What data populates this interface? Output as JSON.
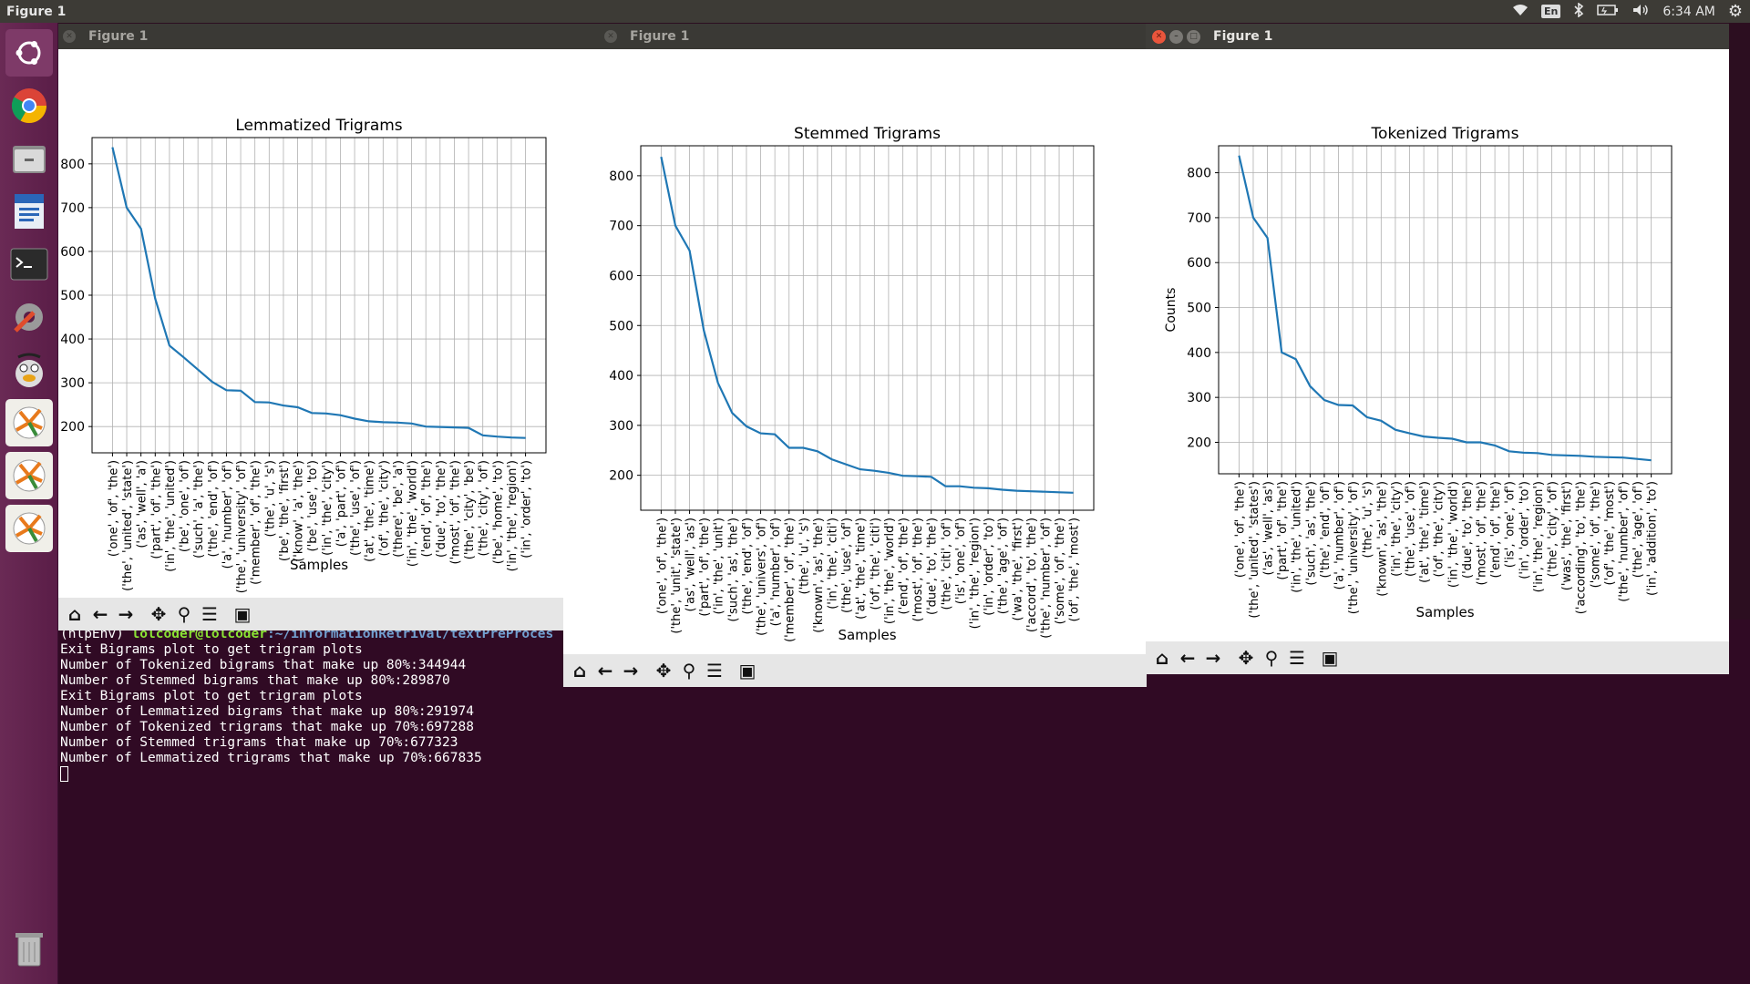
{
  "top_panel": {
    "app_title": "Figure 1",
    "keyboard_layout": "En",
    "clock": "6:34 AM"
  },
  "launcher": {
    "items": [
      "ubuntu-dash-icon",
      "chrome-icon",
      "files-icon",
      "writer-icon",
      "terminal-icon",
      "settings-icon",
      "gimp-icon",
      "matplotlib-figure-icon",
      "matplotlib-figure-icon",
      "matplotlib-figure-icon",
      "trash-icon"
    ]
  },
  "terminal": {
    "prompt_env": "(nlpEnv) ",
    "prompt_user": "lolcoder@lolcoder",
    "prompt_path": ":~/informationRetrival/textPreProces",
    "lines": [
      "Exit Bigrams plot to get trigram plots",
      "Number of Tokenized bigrams that make up 80%:344944",
      "Number of Stemmed bigrams that make up 80%:289870",
      "Exit Bigrams plot to get trigram plots",
      "Number of Lemmatized bigrams that make up 80%:291974",
      "Number of Tokenized trigrams that make up 70%:697288",
      "Number of Stemmed trigrams that make up 70%:677323",
      "Number of Lemmatized trigrams that make up 70%:667835"
    ]
  },
  "windows": [
    {
      "title": "Figure 1",
      "active": false
    },
    {
      "title": "Figure 1",
      "active": false
    },
    {
      "title": "Figure 1",
      "active": true
    }
  ],
  "toolbar_icons": [
    "home-icon",
    "back-icon",
    "forward-icon",
    "pan-icon",
    "zoom-icon",
    "configure-icon",
    "save-icon"
  ],
  "chart_data": [
    {
      "type": "line",
      "title": "Lemmatized Trigrams",
      "xlabel": "Samples",
      "ylabel": "",
      "ylim": [
        140,
        860
      ],
      "yticks": [
        200,
        300,
        400,
        500,
        600,
        700,
        800
      ],
      "grid": true,
      "line_color": "#1f77b4",
      "categories": [
        "('one', 'of', 'the')",
        "('the', 'united', 'state')",
        "('as', 'well', 'a')",
        "('part', 'of', 'the')",
        "('in', 'the', 'united')",
        "('be', 'one', 'of')",
        "('such', 'a', 'the')",
        "('the', 'end', 'of')",
        "('a', 'number', 'of')",
        "('the', 'university', 'of')",
        "('member', 'of', 'the')",
        "('the', 'u', 's')",
        "('be', 'the', 'first')",
        "('know', 'a', 'the')",
        "('be', 'use', 'to')",
        "('in', 'the', 'city')",
        "('a', 'part', 'of')",
        "('the', 'use', 'of')",
        "('at', 'the', 'time')",
        "('of', 'the', 'city')",
        "('there', 'be', 'a')",
        "('in', 'the', 'world')",
        "('end', 'of', 'the')",
        "('due', 'to', 'the')",
        "('most', 'of', 'the')",
        "('the', 'city', 'be')",
        "('the', 'city', 'of')",
        "('be', 'home', 'to')",
        "('in', 'the', 'region')",
        "('in', 'order', 'to')"
      ],
      "values": [
        838,
        700,
        652,
        492,
        385,
        358,
        330,
        302,
        283,
        282,
        256,
        255,
        248,
        244,
        231,
        230,
        226,
        218,
        212,
        210,
        209,
        207,
        200,
        199,
        198,
        197,
        180,
        177,
        175,
        174
      ]
    },
    {
      "type": "line",
      "title": "Stemmed Trigrams",
      "xlabel": "Samples",
      "ylabel": "",
      "ylim": [
        130,
        860
      ],
      "yticks": [
        200,
        300,
        400,
        500,
        600,
        700,
        800
      ],
      "grid": true,
      "line_color": "#1f77b4",
      "categories": [
        "('one', 'of', 'the')",
        "('the', 'unit', 'state')",
        "('as', 'well', 'as')",
        "('part', 'of', 'the')",
        "('in', 'the', 'unit')",
        "('such', 'as', 'the')",
        "('the', 'end', 'of')",
        "('the', 'univers', 'of')",
        "('a', 'number', 'of')",
        "('member', 'of', 'the')",
        "('the', 'u', 's')",
        "('known', 'as', 'the')",
        "('in', 'the', 'citi')",
        "('the', 'use', 'of')",
        "('at', 'the', 'time')",
        "('of', 'the', 'citi')",
        "('in', 'the', 'world')",
        "('end', 'of', 'the')",
        "('most', 'of', 'the')",
        "('due', 'to', 'the')",
        "('the', 'citi', 'of')",
        "('is', 'one', 'of')",
        "('in', 'the', 'region')",
        "('in', 'order', 'to')",
        "('the', 'age', 'of')",
        "('wa', 'the', 'first')",
        "('accord', 'to', 'the')",
        "('the', 'number', 'of')",
        "('some', 'of', 'the')",
        "('of', 'the', 'most')"
      ],
      "values": [
        838,
        700,
        650,
        490,
        385,
        325,
        298,
        284,
        282,
        255,
        255,
        248,
        232,
        222,
        212,
        209,
        205,
        199,
        198,
        197,
        178,
        178,
        175,
        174,
        171,
        169,
        168,
        167,
        166,
        165
      ]
    },
    {
      "type": "line",
      "title": "Tokenized Trigrams",
      "xlabel": "Samples",
      "ylabel": "Counts",
      "ylim": [
        130,
        860
      ],
      "yticks": [
        200,
        300,
        400,
        500,
        600,
        700,
        800
      ],
      "grid": true,
      "line_color": "#1f77b4",
      "categories": [
        "('one', 'of', 'the')",
        "('the', 'united', 'states')",
        "('as', 'well', 'as')",
        "('part', 'of', 'the')",
        "('in', 'the', 'united')",
        "('such', 'as', 'the')",
        "('the', 'end', 'of')",
        "('a', 'number', 'of')",
        "('the', 'university', 'of')",
        "('the', 'u', 's')",
        "('known', 'as', 'the')",
        "('in', 'the', 'city')",
        "('the', 'use', 'of')",
        "('at', 'the', 'time')",
        "('of', 'the', 'city')",
        "('in', 'the', 'world')",
        "('due', 'to', 'the')",
        "('most', 'of', 'the')",
        "('end', 'of', 'the')",
        "('is', 'one', 'of')",
        "('in', 'order', 'to')",
        "('in', 'the', 'region')",
        "('the', 'city', 'of')",
        "('was', 'the', 'first')",
        "('according', 'to', 'the')",
        "('some', 'of', 'the')",
        "('of', 'the', 'most')",
        "('the', 'number', 'of')",
        "('the', 'age', 'of')",
        "('in', 'addition', 'to')"
      ],
      "values": [
        838,
        700,
        655,
        400,
        385,
        325,
        294,
        283,
        282,
        256,
        248,
        228,
        220,
        213,
        210,
        208,
        200,
        200,
        193,
        180,
        177,
        176,
        172,
        171,
        170,
        168,
        167,
        166,
        163,
        160
      ]
    }
  ]
}
